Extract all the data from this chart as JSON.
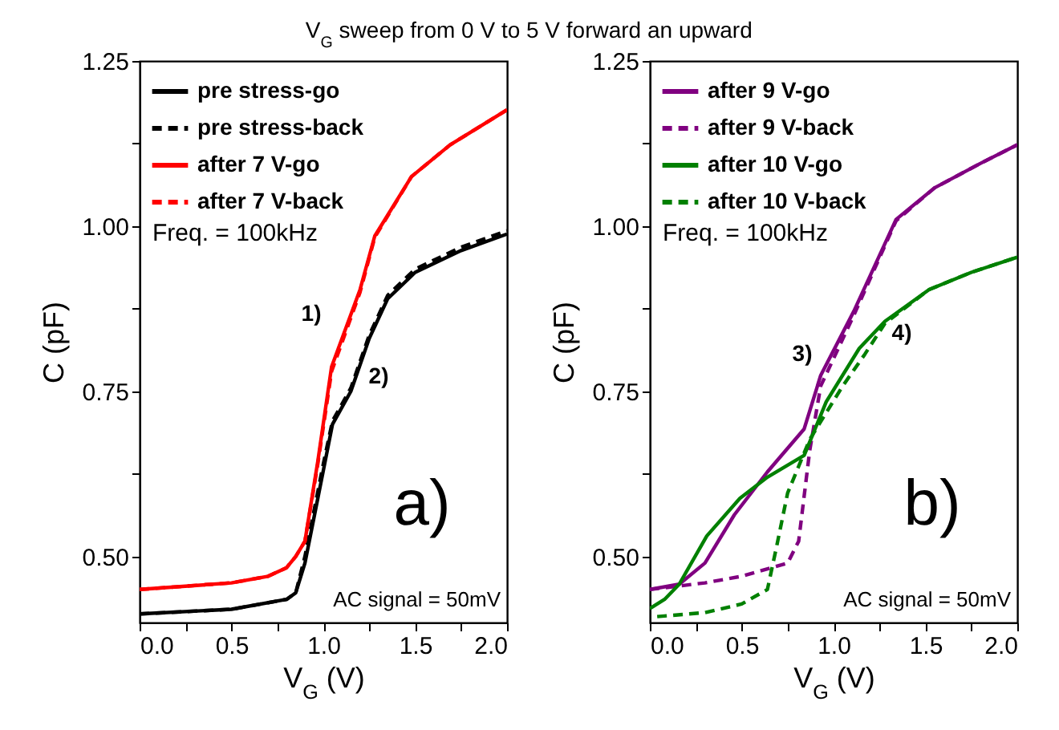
{
  "chart_data": [
    {
      "type": "line",
      "title": "V$_{G}$ sweep from 0 V to 5 V forward an upward",
      "xlabel": "V$_{G}$ (V)",
      "ylabel": "C (pF)",
      "xlim": [
        0,
        2
      ],
      "ylim": [
        0.4,
        1.25
      ],
      "xticks": [
        {
          "value": 0,
          "label": "0.0"
        },
        {
          "value": 0.25,
          "label": null
        },
        {
          "value": 0.5,
          "label": "0.5"
        },
        {
          "value": 0.75,
          "label": null
        },
        {
          "value": 1,
          "label": "1.0"
        },
        {
          "value": 1.25,
          "label": null
        },
        {
          "value": 1.5,
          "label": "1.5"
        },
        {
          "value": 1.75,
          "label": null
        },
        {
          "value": 2,
          "label": "2.0"
        }
      ],
      "yticks": [
        {
          "value": 0.5,
          "label": "0.50"
        },
        {
          "value": 0.625,
          "label": null
        },
        {
          "value": 0.75,
          "label": "0.75"
        },
        {
          "value": 0.875,
          "label": null
        },
        {
          "value": 1,
          "label": "1.00"
        },
        {
          "value": 1.125,
          "label": null
        },
        {
          "value": 1.25,
          "label": "1.25"
        }
      ],
      "grid": false,
      "legend": "top left",
      "marker": "none",
      "annotations": [
        "Freq. = 100kHz",
        "a)",
        "AC signal = 50mV",
        "1)",
        "2)"
      ],
      "series": [
        {
          "name": "pre stress-go",
          "color": "#000000",
          "line_style": "solid",
          "x": [
            0,
            0.5,
            0.8,
            0.85,
            0.9,
            0.95,
            1.0,
            1.05,
            1.15,
            1.25,
            1.35,
            1.5,
            1.75,
            2.0
          ],
          "values": [
            0.413,
            0.42,
            0.435,
            0.445,
            0.49,
            0.56,
            0.63,
            0.7,
            0.75,
            0.83,
            0.89,
            0.93,
            0.963,
            0.988
          ]
        },
        {
          "name": "pre stress-back",
          "color": "#000000",
          "line_style": "dashed",
          "x": [
            0,
            0.5,
            0.8,
            0.85,
            0.9,
            0.95,
            1.0,
            1.05,
            1.15,
            1.25,
            1.35,
            1.5,
            1.75,
            2.0
          ],
          "values": [
            0.413,
            0.42,
            0.435,
            0.445,
            0.5,
            0.57,
            0.64,
            0.705,
            0.755,
            0.835,
            0.895,
            0.935,
            0.968,
            0.993
          ]
        },
        {
          "name": "after 7 V-go",
          "color": "#ff0000",
          "line_style": "solid",
          "x": [
            0,
            0.5,
            0.7,
            0.8,
            0.85,
            0.9,
            0.97,
            1.045,
            1.2,
            1.28,
            1.48,
            1.69,
            2.0
          ],
          "values": [
            0.45,
            0.46,
            0.47,
            0.483,
            0.5,
            0.523,
            0.644,
            0.787,
            0.904,
            0.985,
            1.075,
            1.123,
            1.176
          ]
        },
        {
          "name": "after 7 V-back",
          "color": "#ff0000",
          "line_style": "dashed",
          "x": [
            0,
            0.5,
            0.7,
            0.8,
            0.85,
            0.9,
            0.97,
            1.045,
            1.2,
            1.28,
            1.48,
            1.69,
            2.0
          ],
          "values": [
            0.45,
            0.46,
            0.47,
            0.483,
            0.5,
            0.523,
            0.64,
            0.78,
            0.9,
            0.983,
            1.075,
            1.123,
            1.176
          ]
        }
      ]
    },
    {
      "type": "line",
      "xlabel": "V$_{G}$ (V)",
      "ylabel": "C (pF)",
      "xlim": [
        0,
        2
      ],
      "ylim": [
        0.4,
        1.25
      ],
      "xticks": [
        {
          "value": 0,
          "label": "0.0"
        },
        {
          "value": 0.25,
          "label": null
        },
        {
          "value": 0.5,
          "label": "0.5"
        },
        {
          "value": 0.75,
          "label": null
        },
        {
          "value": 1,
          "label": "1.0"
        },
        {
          "value": 1.25,
          "label": null
        },
        {
          "value": 1.5,
          "label": "1.5"
        },
        {
          "value": 1.75,
          "label": null
        },
        {
          "value": 2,
          "label": "2.0"
        }
      ],
      "yticks": [
        {
          "value": 0.5,
          "label": "0.50"
        },
        {
          "value": 0.625,
          "label": null
        },
        {
          "value": 0.75,
          "label": "0.75"
        },
        {
          "value": 0.875,
          "label": null
        },
        {
          "value": 1,
          "label": "1.00"
        },
        {
          "value": 1.125,
          "label": null
        },
        {
          "value": 1.25,
          "label": "1.25"
        }
      ],
      "grid": false,
      "legend": "top left",
      "marker": "none",
      "annotations": [
        "Freq. = 100kHz",
        "b)",
        "AC signal = 50mV",
        "3)",
        "4)"
      ],
      "series": [
        {
          "name": "after 9 V-go",
          "color": "#800080",
          "line_style": "solid",
          "x": [
            0,
            0.16,
            0.3,
            0.46,
            0.64,
            0.84,
            0.93,
            1.11,
            1.34,
            1.55,
            1.8,
            2.0
          ],
          "values": [
            0.45,
            0.458,
            0.49,
            0.563,
            0.628,
            0.693,
            0.774,
            0.871,
            1.01,
            1.058,
            1.095,
            1.123
          ]
        },
        {
          "name": "after 9 V-back",
          "color": "#800080",
          "line_style": "dashed",
          "x": [
            0,
            0.3,
            0.5,
            0.75,
            0.81,
            0.87,
            0.93,
            1.11,
            1.34,
            1.55,
            1.8,
            2.0
          ],
          "values": [
            0.45,
            0.46,
            0.47,
            0.49,
            0.523,
            0.66,
            0.758,
            0.865,
            1.008,
            1.058,
            1.095,
            1.123
          ]
        },
        {
          "name": "after 10 V-go",
          "color": "#008000",
          "line_style": "solid",
          "x": [
            0,
            0.08,
            0.16,
            0.31,
            0.49,
            0.64,
            0.84,
            0.96,
            1.14,
            1.28,
            1.52,
            1.75,
            2.0
          ],
          "values": [
            0.421,
            0.435,
            0.458,
            0.531,
            0.588,
            0.62,
            0.653,
            0.734,
            0.815,
            0.856,
            0.904,
            0.93,
            0.953
          ]
        },
        {
          "name": "after 10 V-back",
          "color": "#008000",
          "line_style": "dashed",
          "x": [
            0.04,
            0.3,
            0.5,
            0.64,
            0.69,
            0.75,
            0.87,
            1.05,
            1.17,
            1.28,
            1.52,
            1.75,
            2.0
          ],
          "values": [
            0.409,
            0.415,
            0.428,
            0.45,
            0.515,
            0.596,
            0.677,
            0.758,
            0.806,
            0.853,
            0.904,
            0.93,
            0.953
          ]
        }
      ]
    }
  ]
}
